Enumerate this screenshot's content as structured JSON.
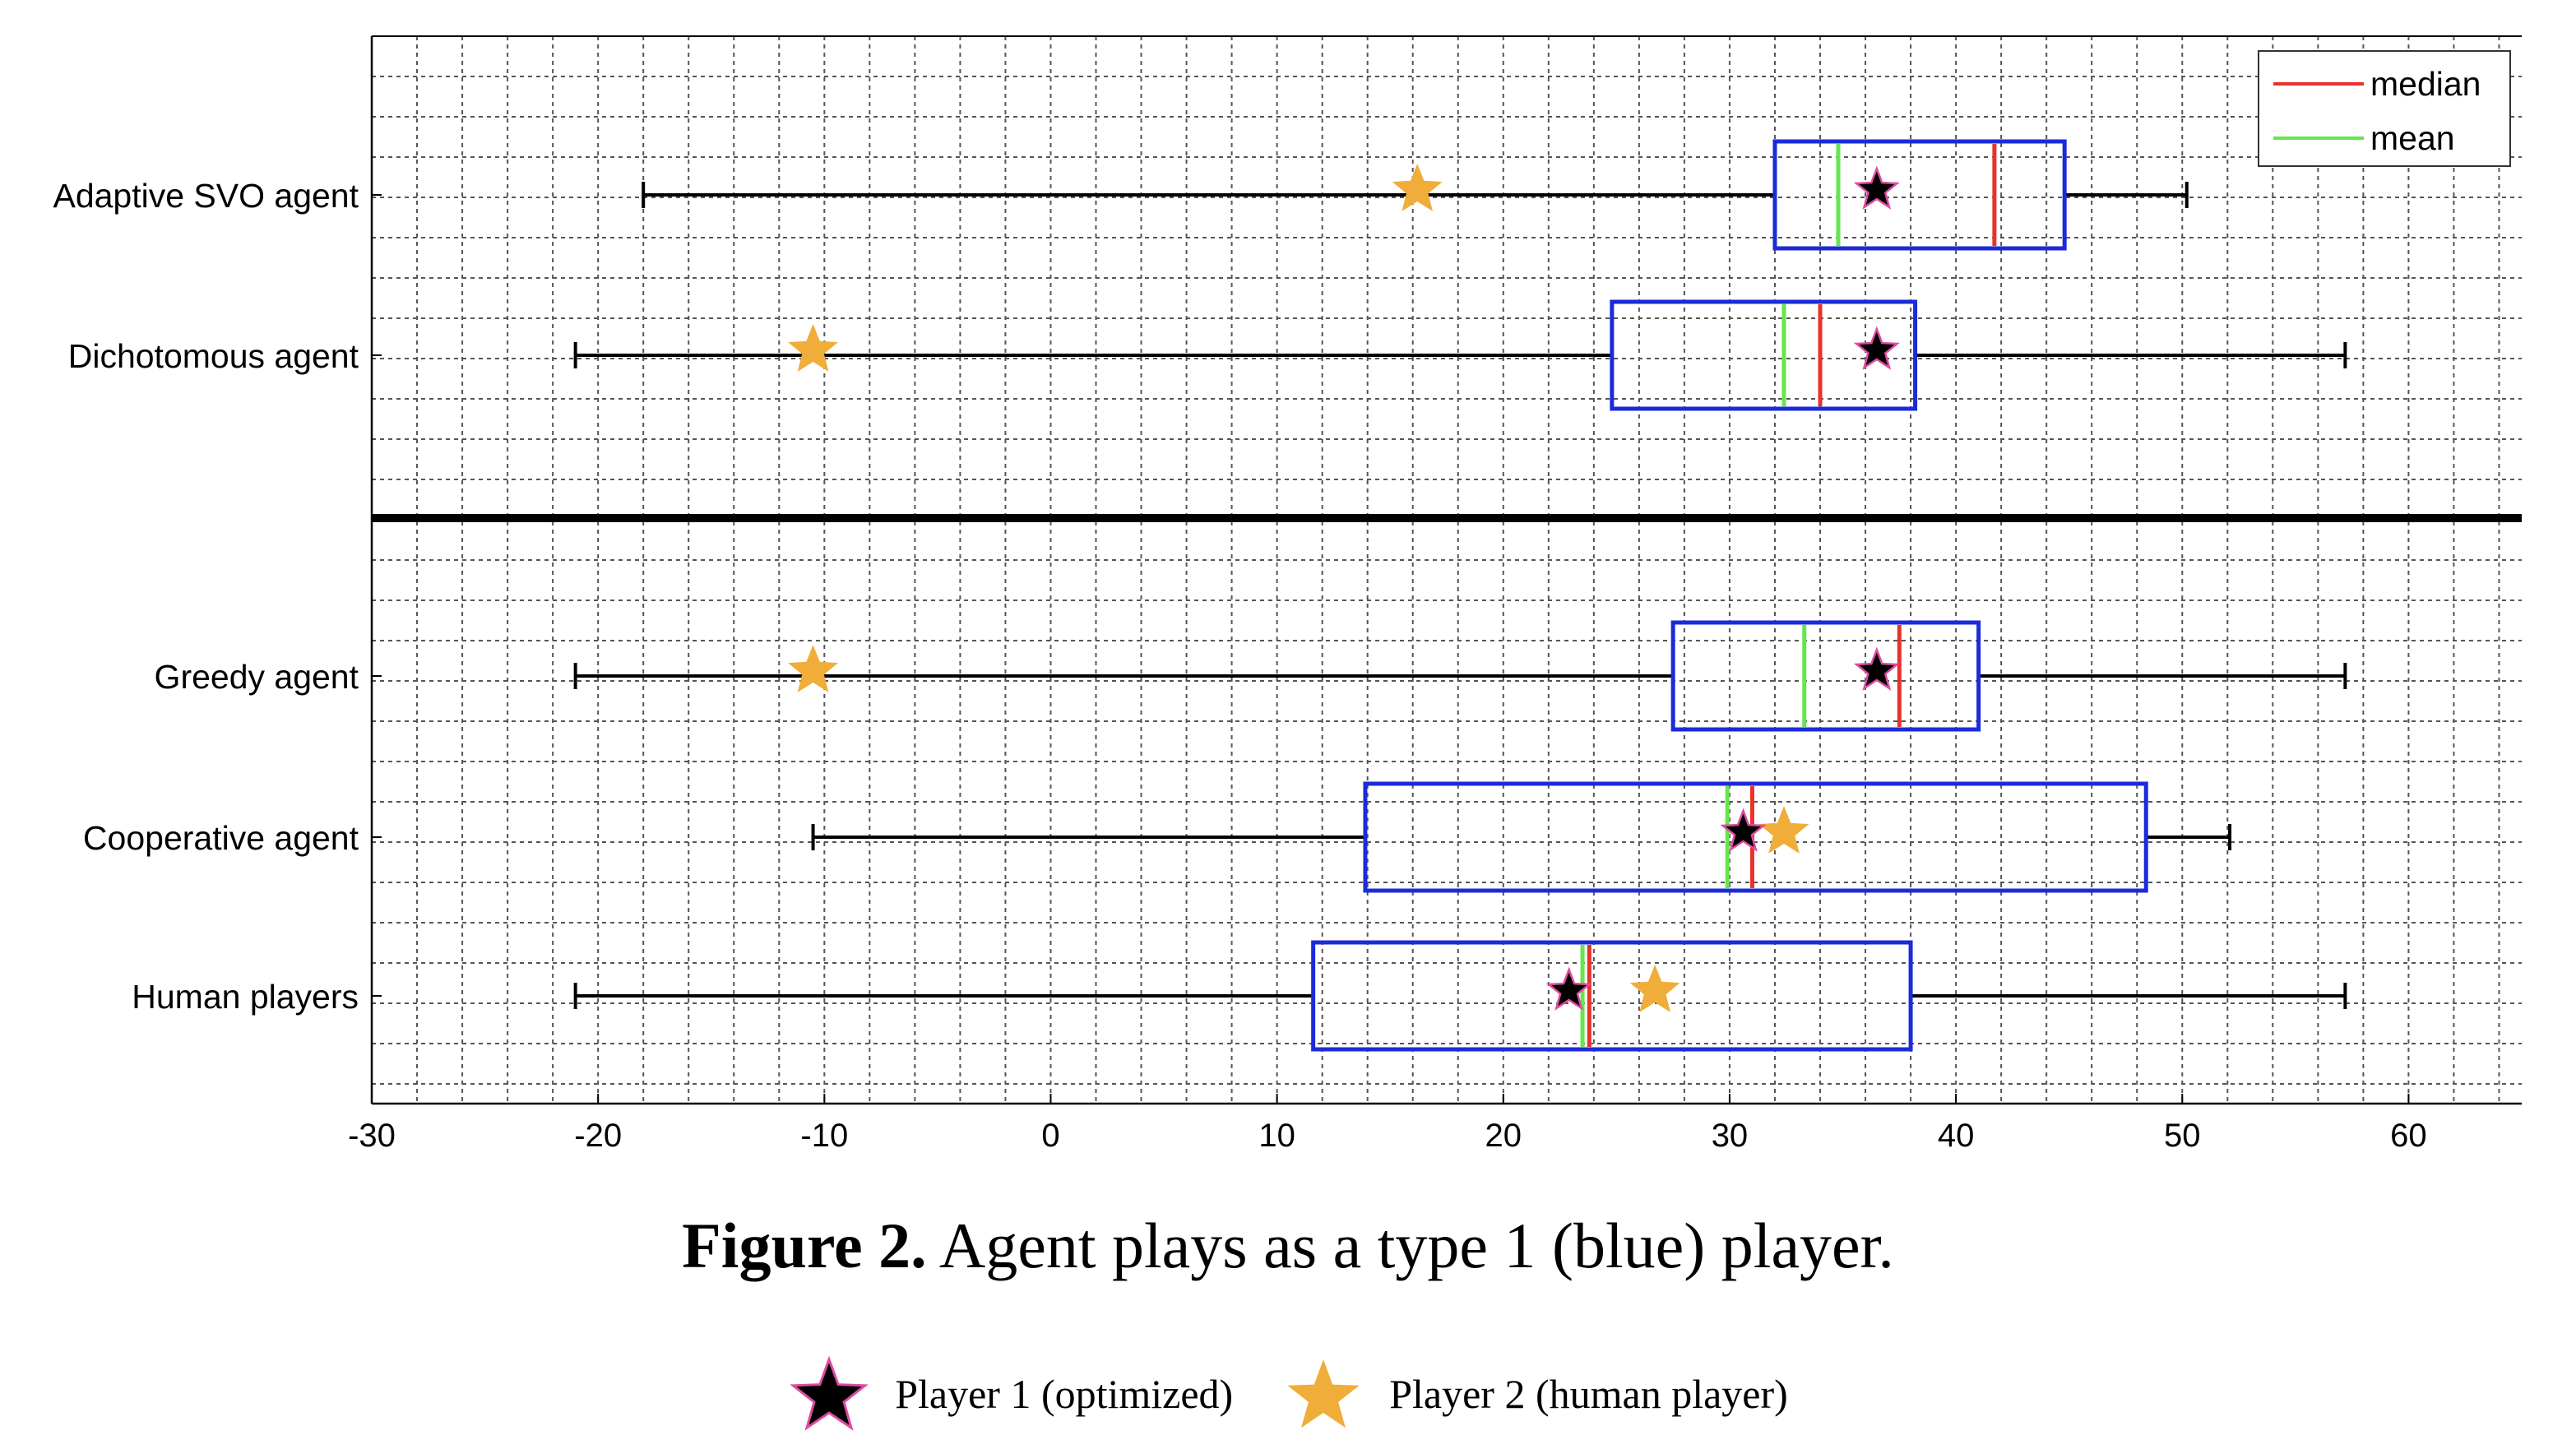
{
  "chart_data": {
    "type": "boxplot",
    "orientation": "horizontal",
    "xlim": [
      -30,
      65
    ],
    "xticks": [
      -30,
      -20,
      -10,
      0,
      10,
      20,
      30,
      40,
      50,
      60
    ],
    "grid": true,
    "legend": {
      "position": "top-right",
      "entries": [
        {
          "label": "median",
          "color": "#e8322b"
        },
        {
          "label": "mean",
          "color": "#66e64d"
        }
      ]
    },
    "box_color": "#1c2bd9",
    "categories": [
      "Adaptive SVO agent",
      "Dichotomous agent",
      "Greedy agent",
      "Cooperative agent",
      "Human players"
    ],
    "boxes": [
      {
        "label": "Adaptive SVO agent",
        "whisker_low": -18,
        "q1": 32,
        "median": 41.7,
        "mean": 34.8,
        "q3": 44.8,
        "whisker_high": 50.2,
        "player1": 36.5,
        "player2": 16.2
      },
      {
        "label": "Dichotomous agent",
        "whisker_low": -21,
        "q1": 24.8,
        "median": 34,
        "mean": 32.4,
        "q3": 38.2,
        "whisker_high": 57.2,
        "player1": 36.5,
        "player2": -10.5
      },
      {
        "label": "Greedy agent",
        "whisker_low": -21,
        "q1": 27.5,
        "median": 37.5,
        "mean": 33.3,
        "q3": 41,
        "whisker_high": 57.2,
        "player1": 36.5,
        "player2": -10.5
      },
      {
        "label": "Cooperative agent",
        "whisker_low": -10.5,
        "q1": 13.9,
        "median": 31,
        "mean": 29.9,
        "q3": 48.4,
        "whisker_high": 52.1,
        "player1": 30.6,
        "player2": 32.4
      },
      {
        "label": "Human players",
        "whisker_low": -21,
        "q1": 11.6,
        "median": 23.8,
        "mean": 23.5,
        "q3": 38,
        "whisker_high": 57.2,
        "player1": 22.9,
        "player2": 26.7
      }
    ],
    "marker_colors": {
      "player1": "#000000",
      "player1_edge": "#e04aa0",
      "player2": "#f0ad3a"
    },
    "caption": {
      "label": "Figure 2.",
      "text": "Agent plays as a type 1 (blue) player."
    },
    "marker_legend": [
      {
        "label": "Player 1 (optimized)",
        "marker": "black-star-icon"
      },
      {
        "label": "Player 2 (human player)",
        "marker": "orange-star-icon"
      }
    ]
  }
}
